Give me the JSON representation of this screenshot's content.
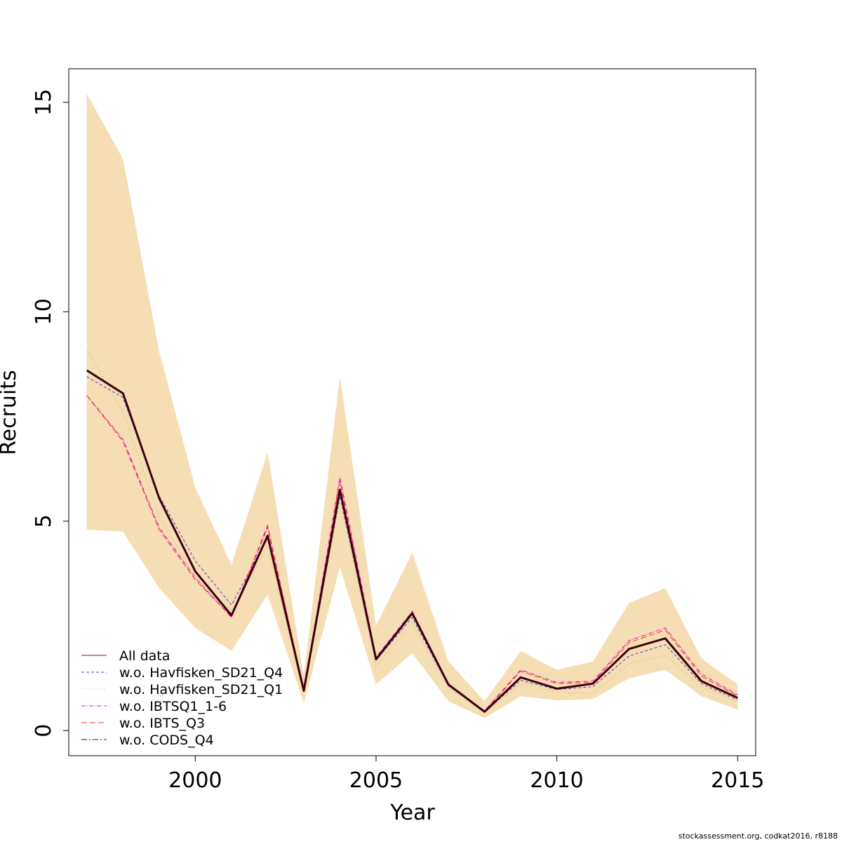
{
  "chart_data": {
    "type": "line",
    "title": "",
    "xlabel": "Year",
    "ylabel": "Recruits",
    "xlim": [
      1996.5,
      2015.5
    ],
    "ylim": [
      -0.6,
      15.8
    ],
    "x_ticks": [
      2000,
      2005,
      2010,
      2015
    ],
    "y_ticks": [
      0,
      5,
      10,
      15
    ],
    "grid": false,
    "legend_position": "bottom-left",
    "x": [
      1997,
      1998,
      1999,
      2000,
      2001,
      2002,
      2003,
      2004,
      2005,
      2006,
      2007,
      2008,
      2009,
      2010,
      2011,
      2012,
      2013,
      2014,
      2015
    ],
    "confidence_band": {
      "color": "#F5DEB3",
      "lower": [
        4.8,
        4.75,
        3.4,
        2.45,
        1.9,
        3.25,
        0.65,
        3.9,
        1.1,
        1.85,
        0.7,
        0.3,
        0.82,
        0.72,
        0.75,
        1.25,
        1.45,
        0.82,
        0.5
      ],
      "upper": [
        15.2,
        13.65,
        9.05,
        5.8,
        3.95,
        6.65,
        1.3,
        8.45,
        2.5,
        4.25,
        1.65,
        0.7,
        1.9,
        1.45,
        1.65,
        3.05,
        3.4,
        1.72,
        1.1
      ]
    },
    "series": [
      {
        "name": "All data",
        "color": "#a50026",
        "dash": "solid",
        "width": 1,
        "values": [
          8.6,
          8.05,
          5.55,
          3.8,
          2.75,
          4.65,
          0.95,
          5.75,
          1.7,
          2.8,
          1.1,
          0.45,
          1.27,
          1.0,
          1.12,
          1.95,
          2.2,
          1.18,
          0.78
        ]
      },
      {
        "name": "w.o. Havfisken_SD21_Q4",
        "color": "#4b3cc9",
        "dash": "4,3",
        "width": 1,
        "values": [
          8.45,
          7.95,
          5.6,
          4.05,
          3.0,
          4.6,
          0.93,
          5.6,
          1.68,
          2.7,
          1.07,
          0.44,
          1.2,
          0.98,
          1.05,
          1.78,
          2.05,
          1.12,
          0.73
        ]
      },
      {
        "name": "w.o. Havfisken_SD21_Q1",
        "color": "#b7b04a",
        "dash": "1,3",
        "width": 1,
        "values": [
          9.1,
          7.6,
          5.1,
          3.7,
          2.85,
          4.4,
          0.9,
          5.5,
          1.55,
          2.55,
          1.03,
          0.42,
          1.12,
          0.92,
          0.88,
          1.6,
          1.8,
          1.05,
          0.68
        ]
      },
      {
        "name": "w.o. IBTSQ1_1-6",
        "color": "#e000c8",
        "dash": "6,2,1,2",
        "width": 1,
        "values": [
          8.0,
          6.95,
          4.85,
          3.65,
          2.7,
          4.85,
          0.97,
          6.05,
          1.75,
          2.85,
          1.12,
          0.47,
          1.45,
          1.15,
          1.18,
          2.15,
          2.45,
          1.35,
          0.85
        ]
      },
      {
        "name": "w.o. IBTS_Q3",
        "color": "#ff2a2a",
        "dash": "8,4",
        "width": 1,
        "values": [
          8.0,
          6.9,
          4.8,
          3.6,
          2.72,
          4.9,
          0.96,
          5.95,
          1.72,
          2.8,
          1.1,
          0.46,
          1.42,
          1.12,
          1.15,
          2.1,
          2.4,
          1.3,
          0.82
        ]
      },
      {
        "name": "w.o. CODS_Q4",
        "color": "#4a0a3f",
        "dash": "8,3,2,3",
        "width": 1,
        "values": [
          8.6,
          8.05,
          5.55,
          3.8,
          2.75,
          4.65,
          0.95,
          5.75,
          1.7,
          2.8,
          1.1,
          0.45,
          1.27,
          1.0,
          1.12,
          1.95,
          2.2,
          1.18,
          0.78
        ]
      }
    ],
    "main_line": {
      "color": "#3d0010",
      "width": 3
    }
  },
  "footer": "stockassessment.org, codkat2016, r8188"
}
